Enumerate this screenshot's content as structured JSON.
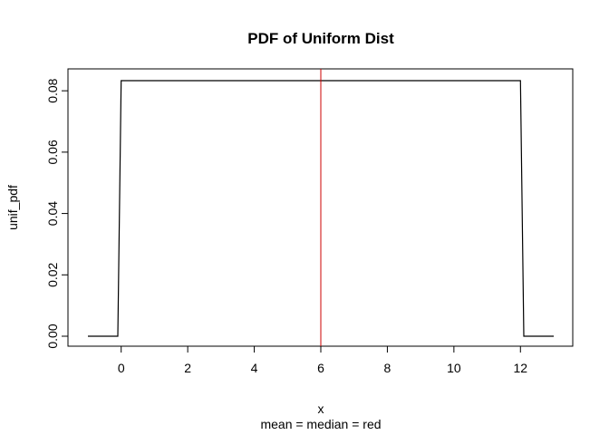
{
  "chart_data": {
    "type": "line",
    "title": "PDF of Uniform Dist",
    "xlabel": "x",
    "ylabel": "unif_pdf",
    "subtitle": "mean = median = red",
    "xlim": [
      -1,
      13
    ],
    "ylim": [
      0,
      0.0833
    ],
    "x_ticks": [
      0,
      2,
      4,
      6,
      8,
      10,
      12
    ],
    "y_ticks": [
      0.0,
      0.02,
      0.04,
      0.06,
      0.08
    ],
    "y_tick_labels": [
      "0.00",
      "0.02",
      "0.04",
      "0.06",
      "0.08"
    ],
    "series": [
      {
        "color": "#000000",
        "x": [
          -1,
          -0.1,
          0,
          12,
          12.1,
          13
        ],
        "y": [
          0,
          0,
          0.0833,
          0.0833,
          0,
          0
        ]
      }
    ],
    "vline": {
      "x": 6,
      "color": "#cc0000"
    },
    "grid": false
  }
}
